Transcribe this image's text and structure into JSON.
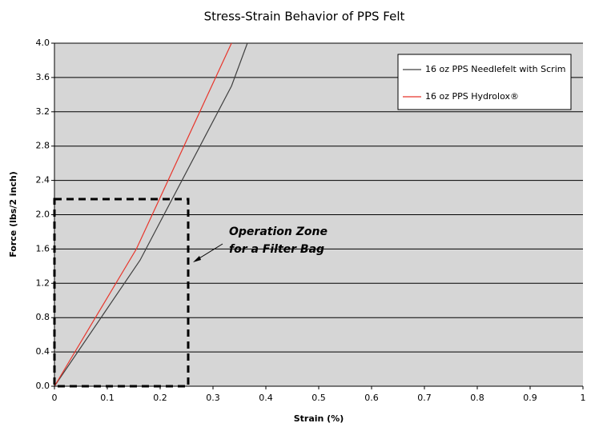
{
  "chart_data": {
    "type": "line",
    "title": "Stress-Strain Behavior of PPS Felt",
    "xlabel": "Strain (%)",
    "ylabel": "Force (lbs/2 inch)",
    "series": [
      {
        "name": "16 oz PPS Needlefelt with Scrim",
        "color": "#404040",
        "x": [
          0,
          0.162,
          0.335,
          0.365
        ],
        "values": [
          0,
          1.47,
          3.5,
          4.0
        ]
      },
      {
        "name": "16 oz PPS Hydrolox®",
        "color": "#e8352b",
        "x": [
          0,
          0.155,
          0.335
        ],
        "values": [
          0,
          1.6,
          4.0
        ]
      }
    ],
    "xlim": [
      0,
      1
    ],
    "xticks": [
      0,
      0.1,
      0.2,
      0.3,
      0.4,
      0.5,
      0.6,
      0.7,
      0.8,
      0.9,
      1
    ],
    "ylim": [
      0,
      4.0
    ],
    "yticks": [
      {
        "value": 0,
        "label": "0.0"
      },
      0.4,
      0.8,
      1.2,
      1.6,
      {
        "value": 2,
        "label": "2.0"
      },
      2.4,
      2.8,
      3.2,
      3.6,
      {
        "value": 4,
        "label": "4.0"
      }
    ],
    "grid": true,
    "legend": "upper right",
    "annotations": [
      "Operation Zone",
      "for a Filter Bag"
    ]
  }
}
